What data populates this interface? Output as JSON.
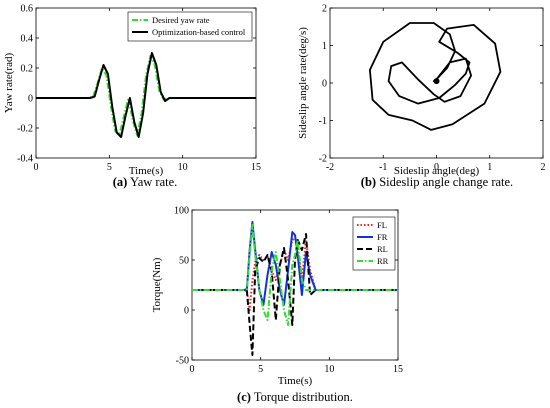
{
  "chart_data": [
    {
      "type": "line",
      "caption_label": "(a)",
      "caption_text": " Yaw rate.",
      "xlabel": "Time(s)",
      "ylabel": "Yaw rate(rad)",
      "xlim": [
        0,
        15
      ],
      "ylim": [
        -0.4,
        0.6
      ],
      "xticks": [
        0,
        5,
        10,
        15
      ],
      "yticks": [
        -0.4,
        -0.2,
        0,
        0.2,
        0.4,
        0.6
      ],
      "grid": false,
      "legend_position": "top-right",
      "series": [
        {
          "name": "Desired yaw rate",
          "color": "#33dd33",
          "style": "dash-dot",
          "x": [
            0,
            3.5,
            3.9,
            4.2,
            4.5,
            4.8,
            5.1,
            5.4,
            5.7,
            6.0,
            6.3,
            6.6,
            6.9,
            7.2,
            7.5,
            7.8,
            8.1,
            8.4,
            8.7,
            9.0,
            9.5,
            15
          ],
          "y": [
            0,
            0,
            0.01,
            0.1,
            0.2,
            0.15,
            -0.05,
            -0.22,
            -0.24,
            -0.12,
            0.0,
            -0.15,
            -0.25,
            -0.1,
            0.15,
            0.28,
            0.22,
            0.05,
            -0.01,
            0,
            0,
            0
          ]
        },
        {
          "name": "Optimization-based control",
          "color": "#000000",
          "style": "solid",
          "x": [
            0,
            3.7,
            4.0,
            4.3,
            4.6,
            4.9,
            5.2,
            5.5,
            5.8,
            6.1,
            6.4,
            6.7,
            7.0,
            7.3,
            7.6,
            7.9,
            8.2,
            8.5,
            8.8,
            9.1,
            9.6,
            15
          ],
          "y": [
            0,
            0,
            0.01,
            0.12,
            0.22,
            0.16,
            -0.06,
            -0.23,
            -0.26,
            -0.12,
            0.0,
            -0.16,
            -0.26,
            -0.1,
            0.16,
            0.3,
            0.22,
            0.04,
            -0.02,
            0,
            0,
            0
          ]
        }
      ]
    },
    {
      "type": "line",
      "caption_label": "(b)",
      "caption_text": " Sideslip angle change rate.",
      "xlabel": "Sideslip angle(deg)",
      "ylabel": "Sideslip angle rate(deg/s)",
      "xlim": [
        -2,
        2
      ],
      "ylim": [
        -2,
        2
      ],
      "xticks": [
        -2,
        -1,
        0,
        1,
        2
      ],
      "yticks": [
        -2,
        -1,
        0,
        1,
        2
      ],
      "grid": false,
      "series": [
        {
          "name": "",
          "color": "#000000",
          "style": "solid",
          "x": [
            0,
            0.25,
            0.55,
            0.65,
            0.45,
            0.15,
            -0.05,
            -0.35,
            -0.65,
            -0.85,
            -0.9,
            -0.7,
            -0.35,
            0.05,
            0.35,
            0.55,
            0.62,
            0.4,
            0.05,
            0.2,
            0.7,
            1.1,
            1.2,
            0.9,
            0.3,
            -0.1,
            -0.45,
            -0.9,
            -1.2,
            -1.25,
            -1.0,
            -0.5,
            -0.05,
            0.25,
            0.35,
            0.2,
            0.0,
            -0.05,
            0.0
          ],
          "y": [
            0.1,
            0.55,
            0.65,
            0.2,
            -0.35,
            -0.5,
            -0.3,
            0.1,
            0.55,
            0.45,
            0.05,
            -0.35,
            -0.55,
            -0.4,
            -0.05,
            0.25,
            0.55,
            0.8,
            1.1,
            1.45,
            1.55,
            1.05,
            0.3,
            -0.55,
            -1.1,
            -1.25,
            -1.0,
            -0.85,
            -0.45,
            0.35,
            1.1,
            1.6,
            1.6,
            1.3,
            0.85,
            0.4,
            0.1,
            0.05,
            0.1
          ]
        }
      ]
    },
    {
      "type": "line",
      "caption_label": "(c)",
      "caption_text": " Torque distribution.",
      "xlabel": "Time(s)",
      "ylabel": "Torque(Nm)",
      "xlim": [
        0,
        15
      ],
      "ylim": [
        -50,
        100
      ],
      "xticks": [
        0,
        5,
        10,
        15
      ],
      "yticks": [
        -50,
        0,
        50,
        100
      ],
      "grid": false,
      "legend_position": "top-right",
      "series": [
        {
          "name": "FL",
          "color": "#ee2222",
          "style": "dotted",
          "x": [
            0,
            3.8,
            4.0,
            4.2,
            4.4,
            4.6,
            4.9,
            5.2,
            5.5,
            5.8,
            6.1,
            6.4,
            6.7,
            7.0,
            7.3,
            7.5,
            7.7,
            8.0,
            8.3,
            8.6,
            9.0,
            15
          ],
          "y": [
            20,
            20,
            19,
            0,
            30,
            48,
            55,
            50,
            54,
            40,
            30,
            45,
            60,
            50,
            70,
            72,
            65,
            30,
            70,
            40,
            20,
            20
          ]
        },
        {
          "name": "FR",
          "color": "#1133dd",
          "style": "solid",
          "x": [
            0,
            3.8,
            4.0,
            4.2,
            4.4,
            4.6,
            4.9,
            5.2,
            5.5,
            5.8,
            6.1,
            6.4,
            6.7,
            7.0,
            7.3,
            7.5,
            7.7,
            8.0,
            8.3,
            8.6,
            9.0,
            15
          ],
          "y": [
            20,
            20,
            21,
            60,
            88,
            60,
            20,
            5,
            35,
            58,
            45,
            20,
            5,
            40,
            78,
            75,
            55,
            15,
            58,
            35,
            20,
            20
          ]
        },
        {
          "name": "RL",
          "color": "#000000",
          "style": "dashed",
          "x": [
            0,
            3.8,
            4.0,
            4.2,
            4.4,
            4.6,
            4.9,
            5.2,
            5.5,
            5.8,
            6.1,
            6.4,
            6.7,
            7.0,
            7.3,
            7.5,
            7.7,
            8.0,
            8.3,
            8.6,
            9.0,
            15
          ],
          "y": [
            20,
            20,
            19,
            -15,
            -45,
            40,
            52,
            48,
            55,
            38,
            -10,
            45,
            62,
            30,
            -15,
            50,
            70,
            60,
            76,
            15,
            20,
            20
          ]
        },
        {
          "name": "RR",
          "color": "#33dd33",
          "style": "dash-dot",
          "x": [
            0,
            3.8,
            4.0,
            4.2,
            4.4,
            4.6,
            4.9,
            5.2,
            5.5,
            5.8,
            6.1,
            6.4,
            6.7,
            7.0,
            7.3,
            7.5,
            7.7,
            8.0,
            8.3,
            8.6,
            9.0,
            15
          ],
          "y": [
            20,
            20,
            21,
            55,
            85,
            55,
            20,
            0,
            -10,
            40,
            58,
            30,
            0,
            -15,
            45,
            55,
            70,
            30,
            20,
            20,
            20,
            20
          ]
        }
      ]
    }
  ]
}
